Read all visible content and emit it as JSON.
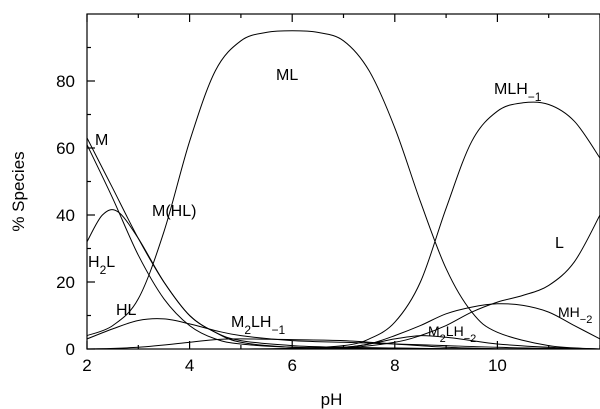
{
  "chart_data": {
    "type": "line",
    "title": "",
    "xlabel": "pH",
    "ylabel": "% Species",
    "xlim": [
      2,
      12
    ],
    "ylim": [
      0,
      100
    ],
    "xticks": [
      2,
      4,
      6,
      8,
      10
    ],
    "yticks": [
      0,
      20,
      40,
      60,
      80
    ],
    "grid": false,
    "series": [
      {
        "name": "M",
        "label_parts": [
          [
            "M",
            ""
          ]
        ],
        "x": [
          2,
          2.5,
          3,
          3.5,
          4,
          4.5,
          5,
          6,
          7,
          8,
          9,
          10,
          11,
          12
        ],
        "y": [
          63,
          48,
          33,
          20,
          10,
          5,
          2,
          0.5,
          0.3,
          0.2,
          0.1,
          0,
          0,
          0
        ]
      },
      {
        "name": "M(HL)",
        "label_parts": [
          [
            "M(HL)",
            ""
          ]
        ],
        "x": [
          2,
          2.3,
          2.6,
          3,
          3.5,
          4,
          4.5,
          5,
          6,
          7,
          8,
          9,
          10,
          11,
          12
        ],
        "y": [
          32,
          40,
          41,
          33,
          20,
          10,
          5,
          2.5,
          1,
          0.5,
          0.3,
          0.1,
          0,
          0,
          0
        ]
      },
      {
        "name": "H2L",
        "label_parts": [
          [
            "H",
            ""
          ],
          [
            "2",
            "sub"
          ],
          [
            "L",
            ""
          ]
        ],
        "x": [
          2,
          2.5,
          3,
          3.5,
          4,
          4.5,
          5,
          6,
          7,
          8,
          9,
          10,
          11,
          12
        ],
        "y": [
          61,
          45,
          28,
          15,
          7,
          3,
          1.5,
          0.5,
          0.2,
          0.1,
          0,
          0,
          0,
          0
        ]
      },
      {
        "name": "HL",
        "label_parts": [
          [
            "HL",
            ""
          ]
        ],
        "x": [
          2,
          2.5,
          3,
          3.5,
          4,
          4.5,
          5,
          6,
          7,
          8,
          9,
          10,
          11,
          12
        ],
        "y": [
          3,
          6,
          8.5,
          9,
          7.5,
          5.5,
          4,
          2.5,
          2,
          1.5,
          1,
          0.5,
          0.2,
          0
        ]
      },
      {
        "name": "ML",
        "label_parts": [
          [
            "ML",
            ""
          ]
        ],
        "x": [
          2,
          2.5,
          3,
          3.5,
          4,
          4.5,
          5,
          5.5,
          6,
          6.5,
          7,
          7.5,
          8,
          8.5,
          9,
          9.5,
          10,
          11,
          12
        ],
        "y": [
          4,
          7,
          15,
          35,
          62,
          83,
          92,
          94.5,
          95,
          94.5,
          92,
          83,
          66,
          44,
          24,
          11,
          5,
          1,
          0
        ]
      },
      {
        "name": "MLH-1",
        "label_parts": [
          [
            "MLH",
            ""
          ],
          [
            "−1",
            "sub"
          ]
        ],
        "x": [
          2,
          3,
          4,
          5,
          6,
          7,
          7.5,
          8,
          8.5,
          9,
          9.5,
          10,
          10.5,
          11,
          11.5,
          12
        ],
        "y": [
          0,
          0,
          0,
          0,
          0.2,
          1,
          3,
          8,
          20,
          42,
          62,
          71,
          73.5,
          73,
          68,
          57
        ]
      },
      {
        "name": "L",
        "label_parts": [
          [
            "L",
            ""
          ]
        ],
        "x": [
          2,
          4,
          6,
          7,
          8,
          8.5,
          9,
          9.5,
          10,
          10.5,
          11,
          11.5,
          12
        ],
        "y": [
          0,
          0,
          0,
          0.3,
          2,
          4,
          7,
          11,
          14,
          16,
          19,
          26,
          40
        ]
      },
      {
        "name": "M2LH-1",
        "label_parts": [
          [
            "M",
            ""
          ],
          [
            "2",
            "sub"
          ],
          [
            "LH",
            ""
          ],
          [
            "−1",
            "sub"
          ]
        ],
        "x": [
          2,
          3,
          4,
          4.5,
          5,
          6,
          7,
          8,
          9,
          10,
          11,
          12
        ],
        "y": [
          0,
          0.5,
          2,
          2.8,
          3,
          2.8,
          2.5,
          1.5,
          0.5,
          0.1,
          0,
          0
        ]
      },
      {
        "name": "M2LH-2",
        "label_parts": [
          [
            "M",
            ""
          ],
          [
            "2",
            "sub"
          ],
          [
            "LH",
            ""
          ],
          [
            "−2",
            "sub"
          ]
        ],
        "x": [
          2,
          4,
          6,
          7,
          7.5,
          8,
          8.5,
          9,
          9.5,
          10,
          11,
          12
        ],
        "y": [
          0,
          0,
          0,
          0.5,
          1.5,
          3,
          4,
          3.5,
          2.5,
          1.5,
          0.5,
          0
        ]
      },
      {
        "name": "MH-2",
        "label_parts": [
          [
            "MH",
            ""
          ],
          [
            "−2",
            "sub"
          ]
        ],
        "x": [
          2,
          6,
          7,
          7.5,
          8,
          8.5,
          9,
          9.5,
          10,
          10.5,
          11,
          11.5,
          12
        ],
        "y": [
          0,
          0,
          0.5,
          1.5,
          4,
          7,
          10.5,
          12.5,
          13.5,
          13,
          11,
          7,
          3
        ]
      }
    ]
  }
}
